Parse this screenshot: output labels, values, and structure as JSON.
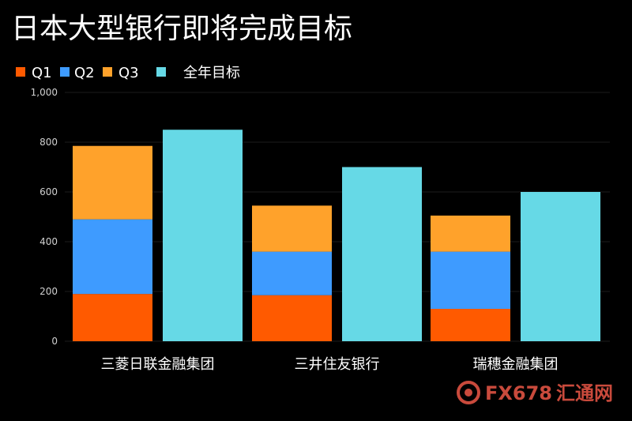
{
  "chart_data": {
    "type": "bar",
    "title": "日本大型银行即将完成目标",
    "categories": [
      "三菱日联金融集团",
      "三井住友银行",
      "瑞穗金融集团"
    ],
    "stacked_series": [
      {
        "name": "Q1",
        "color": "#ff5a00",
        "values": [
          190,
          185,
          130
        ]
      },
      {
        "name": "Q2",
        "color": "#3e9bff",
        "values": [
          300,
          175,
          230
        ]
      },
      {
        "name": "Q3",
        "color": "#ffa22b",
        "values": [
          295,
          185,
          145
        ]
      }
    ],
    "target_series": {
      "name": "全年目标",
      "color": "#66d9e6",
      "values": [
        850,
        700,
        600
      ]
    },
    "yticks": [
      "0",
      "200",
      "400",
      "600",
      "800",
      "1,000"
    ],
    "ylim": [
      0,
      1000
    ],
    "grid": true,
    "legend_position": "top-left"
  },
  "watermark": {
    "text": "FX678",
    "suffix": "汇通网"
  }
}
